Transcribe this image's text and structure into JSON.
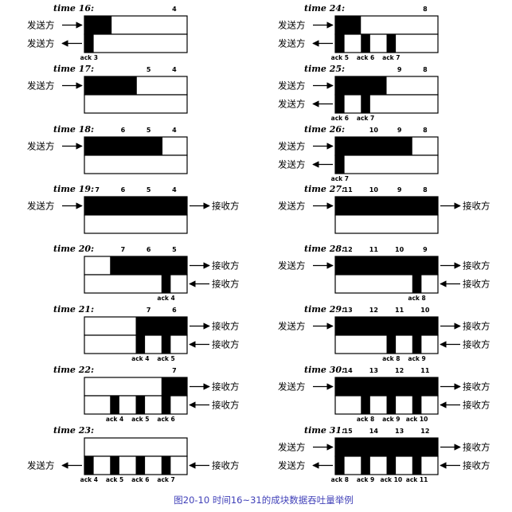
{
  "labels": {
    "sender": "发送方",
    "receiver": "接收方"
  },
  "caption": "图20-10   时间16~31的成块数据吞吐量举例",
  "panels": [
    {
      "id": "16",
      "time": "time 16:",
      "segs": [
        "4"
      ],
      "acks": [
        "ack 3"
      ],
      "top_fill": [
        0.0,
        0.265
      ],
      "bot_fill": [
        [
          0.0,
          0.09
        ]
      ],
      "left_top": "sender-in",
      "left_bot": "sender-out",
      "right_top": "",
      "right_bot": ""
    },
    {
      "id": "17",
      "time": "time 17:",
      "segs": [
        "5",
        "4"
      ],
      "acks": [],
      "top_fill": [
        0.0,
        0.51
      ],
      "bot_fill": [],
      "left_top": "sender-in",
      "left_bot": "",
      "right_top": "",
      "right_bot": ""
    },
    {
      "id": "18",
      "time": "time 18:",
      "segs": [
        "6",
        "5",
        "4"
      ],
      "acks": [],
      "top_fill": [
        0.0,
        0.76
      ],
      "bot_fill": [],
      "left_top": "sender-in",
      "left_bot": "",
      "right_top": "",
      "right_bot": ""
    },
    {
      "id": "19",
      "time": "time 19:",
      "segs": [
        "7",
        "6",
        "5",
        "4"
      ],
      "acks": [],
      "top_fill": [
        0.0,
        1.0
      ],
      "bot_fill": [],
      "left_top": "sender-in",
      "left_bot": "",
      "right_top": "receiver-out",
      "right_bot": ""
    },
    {
      "id": "20",
      "time": "time 20:",
      "segs": [
        "7",
        "6",
        "5"
      ],
      "acks": [
        "ack 4"
      ],
      "top_fill": [
        0.25,
        1.0
      ],
      "bot_fill": [
        [
          0.75,
          0.84
        ]
      ],
      "left_top": "",
      "left_bot": "",
      "right_top": "receiver-out",
      "right_bot": "receiver-in"
    },
    {
      "id": "21",
      "time": "time 21:",
      "segs": [
        "7",
        "6"
      ],
      "acks": [
        "ack 4",
        "ack 5"
      ],
      "top_fill": [
        0.5,
        1.0
      ],
      "bot_fill": [
        [
          0.5,
          0.59
        ],
        [
          0.75,
          0.84
        ]
      ],
      "left_top": "",
      "left_bot": "",
      "right_top": "receiver-out",
      "right_bot": "receiver-in"
    },
    {
      "id": "22",
      "time": "time 22:",
      "segs": [
        "7"
      ],
      "acks": [
        "ack 4",
        "ack 5",
        "ack 6"
      ],
      "top_fill": [
        0.75,
        1.0
      ],
      "bot_fill": [
        [
          0.25,
          0.34
        ],
        [
          0.5,
          0.59
        ],
        [
          0.75,
          0.84
        ]
      ],
      "left_top": "",
      "left_bot": "",
      "right_top": "receiver-out",
      "right_bot": "receiver-in"
    },
    {
      "id": "23",
      "time": "time 23:",
      "segs": [],
      "acks": [
        "ack 4",
        "ack 5",
        "ack 6",
        "ack 7"
      ],
      "top_fill": [
        0.0,
        0.0
      ],
      "bot_fill": [
        [
          0.0,
          0.09
        ],
        [
          0.25,
          0.34
        ],
        [
          0.5,
          0.59
        ],
        [
          0.75,
          0.84
        ]
      ],
      "left_top": "",
      "left_bot": "sender-out",
      "right_top": "",
      "right_bot": "receiver-in"
    },
    {
      "id": "24",
      "time": "time 24:",
      "segs": [
        "8"
      ],
      "acks": [
        "ack 5",
        "ack 6",
        "ack 7"
      ],
      "top_fill": [
        0.0,
        0.25
      ],
      "bot_fill": [
        [
          0.0,
          0.09
        ],
        [
          0.25,
          0.34
        ],
        [
          0.5,
          0.59
        ]
      ],
      "left_top": "sender-in",
      "left_bot": "sender-out",
      "right_top": "",
      "right_bot": ""
    },
    {
      "id": "25",
      "time": "time 25:",
      "segs": [
        "9",
        "8"
      ],
      "acks": [
        "ack 6",
        "ack 7"
      ],
      "top_fill": [
        0.0,
        0.5
      ],
      "bot_fill": [
        [
          0.0,
          0.09
        ],
        [
          0.25,
          0.34
        ]
      ],
      "left_top": "sender-in",
      "left_bot": "sender-out",
      "right_top": "",
      "right_bot": ""
    },
    {
      "id": "26",
      "time": "time 26:",
      "segs": [
        "10",
        "9",
        "8"
      ],
      "acks": [
        "ack 7"
      ],
      "top_fill": [
        0.0,
        0.75
      ],
      "bot_fill": [
        [
          0.0,
          0.09
        ]
      ],
      "left_top": "sender-in",
      "left_bot": "sender-out",
      "right_top": "",
      "right_bot": ""
    },
    {
      "id": "27",
      "time": "time 27:",
      "segs": [
        "11",
        "10",
        "9",
        "8"
      ],
      "acks": [],
      "top_fill": [
        0.0,
        1.0
      ],
      "bot_fill": [],
      "left_top": "sender-in",
      "left_bot": "",
      "right_top": "receiver-out",
      "right_bot": ""
    },
    {
      "id": "28",
      "time": "time 28:",
      "segs": [
        "12",
        "11",
        "10",
        "9"
      ],
      "acks": [
        "ack 8"
      ],
      "top_fill": [
        0.0,
        1.0
      ],
      "bot_fill": [
        [
          0.75,
          0.84
        ]
      ],
      "left_top": "sender-in",
      "left_bot": "",
      "right_top": "receiver-out",
      "right_bot": "receiver-in"
    },
    {
      "id": "29",
      "time": "time 29:",
      "segs": [
        "13",
        "12",
        "11",
        "10"
      ],
      "acks": [
        "ack 8",
        "ack 9"
      ],
      "top_fill": [
        0.0,
        1.0
      ],
      "bot_fill": [
        [
          0.5,
          0.59
        ],
        [
          0.75,
          0.84
        ]
      ],
      "left_top": "sender-in",
      "left_bot": "",
      "right_top": "receiver-out",
      "right_bot": "receiver-in"
    },
    {
      "id": "30",
      "time": "time 30:",
      "segs": [
        "14",
        "13",
        "12",
        "11"
      ],
      "acks": [
        "ack 8",
        "ack 9",
        "ack 10"
      ],
      "top_fill": [
        0.0,
        1.0
      ],
      "bot_fill": [
        [
          0.25,
          0.34
        ],
        [
          0.5,
          0.59
        ],
        [
          0.75,
          0.84
        ]
      ],
      "left_top": "sender-in",
      "left_bot": "",
      "right_top": "receiver-out",
      "right_bot": "receiver-in"
    },
    {
      "id": "31",
      "time": "time 31:",
      "segs": [
        "15",
        "14",
        "13",
        "12"
      ],
      "acks": [
        "ack 8",
        "ack 9",
        "ack 10",
        "ack 11"
      ],
      "top_fill": [
        0.0,
        1.0
      ],
      "bot_fill": [
        [
          0.0,
          0.09
        ],
        [
          0.25,
          0.34
        ],
        [
          0.5,
          0.59
        ],
        [
          0.75,
          0.84
        ]
      ],
      "left_top": "sender-in",
      "left_bot": "sender-out",
      "right_top": "receiver-out",
      "right_bot": "receiver-in"
    }
  ]
}
